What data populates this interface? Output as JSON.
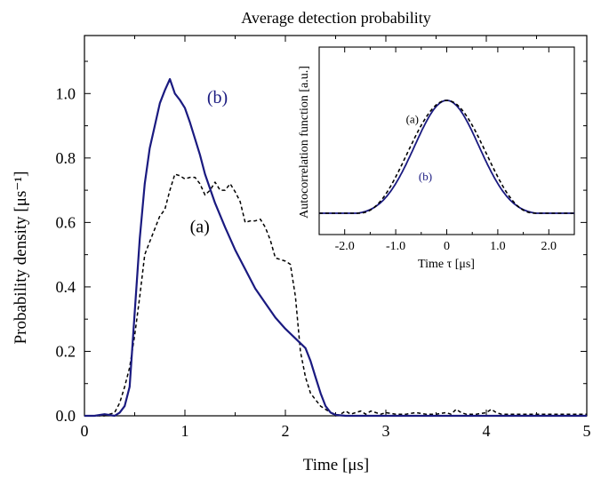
{
  "chart_data": [
    {
      "type": "line",
      "title": "Average detection probability",
      "xlabel": "Time [μs]",
      "ylabel": "Probability density   [μs⁻¹]",
      "xlim": [
        0,
        5
      ],
      "ylim": [
        0,
        1.18
      ],
      "x_ticks": [
        "0",
        "1",
        "2",
        "3",
        "4",
        "5"
      ],
      "y_ticks": [
        "0.0",
        "0.2",
        "0.4",
        "0.6",
        "0.8",
        "1.0"
      ],
      "grid": false,
      "series": [
        {
          "name": "(a)",
          "style": "dashed",
          "color": "#000000",
          "x": [
            0,
            0.2,
            0.25,
            0.3,
            0.35,
            0.4,
            0.45,
            0.5,
            0.55,
            0.6,
            0.65,
            0.7,
            0.75,
            0.8,
            0.85,
            0.9,
            0.95,
            1.0,
            1.05,
            1.1,
            1.15,
            1.2,
            1.25,
            1.3,
            1.35,
            1.4,
            1.45,
            1.5,
            1.55,
            1.6,
            1.65,
            1.7,
            1.75,
            1.8,
            1.85,
            1.9,
            1.95,
            2.0,
            2.05,
            2.1,
            2.15,
            2.2,
            2.25,
            2.3,
            2.35,
            2.4,
            2.45,
            2.5,
            2.55,
            2.6,
            2.65,
            2.7,
            2.75,
            2.8,
            2.85,
            2.9,
            2.95,
            3.0,
            3.1,
            3.2,
            3.3,
            3.4,
            3.5,
            3.6,
            3.65,
            3.7,
            3.75,
            3.8,
            3.9,
            4.0,
            4.05,
            4.1,
            4.15,
            4.2,
            4.3,
            4.5,
            5.0
          ],
          "values": [
            0,
            0,
            0.005,
            0.01,
            0.04,
            0.09,
            0.15,
            0.25,
            0.37,
            0.5,
            0.54,
            0.58,
            0.62,
            0.64,
            0.7,
            0.75,
            0.745,
            0.735,
            0.74,
            0.74,
            0.72,
            0.685,
            0.7,
            0.725,
            0.7,
            0.7,
            0.72,
            0.695,
            0.665,
            0.6,
            0.605,
            0.605,
            0.61,
            0.585,
            0.545,
            0.49,
            0.485,
            0.48,
            0.47,
            0.37,
            0.2,
            0.12,
            0.07,
            0.05,
            0.03,
            0.02,
            0.01,
            0.0,
            0.005,
            0.015,
            0.005,
            0.01,
            0.015,
            0.005,
            0.015,
            0.01,
            0.005,
            0.01,
            0.005,
            0.005,
            0.01,
            0.005,
            0.005,
            0.01,
            0.005,
            0.02,
            0.01,
            0.005,
            0.005,
            0.01,
            0.02,
            0.01,
            0.005,
            0.005,
            0.005,
            0.005,
            0.005
          ]
        },
        {
          "name": "(b)",
          "style": "solid",
          "color": "#1a1a80",
          "x": [
            0,
            0.1,
            0.2,
            0.3,
            0.35,
            0.4,
            0.45,
            0.5,
            0.55,
            0.6,
            0.65,
            0.7,
            0.75,
            0.8,
            0.85,
            0.9,
            0.95,
            1.0,
            1.05,
            1.1,
            1.15,
            1.2,
            1.3,
            1.4,
            1.5,
            1.6,
            1.7,
            1.8,
            1.9,
            2.0,
            2.1,
            2.2,
            2.25,
            2.3,
            2.35,
            2.4,
            2.45,
            2.5,
            2.6,
            3.0,
            4.0,
            5.0
          ],
          "values": [
            0,
            0,
            0.005,
            0.0,
            0.01,
            0.03,
            0.09,
            0.32,
            0.55,
            0.72,
            0.83,
            0.9,
            0.97,
            1.01,
            1.045,
            1.0,
            0.98,
            0.955,
            0.91,
            0.86,
            0.81,
            0.75,
            0.66,
            0.585,
            0.515,
            0.455,
            0.395,
            0.35,
            0.305,
            0.27,
            0.24,
            0.21,
            0.17,
            0.12,
            0.07,
            0.03,
            0.01,
            0.003,
            0,
            0,
            0,
            0
          ]
        }
      ],
      "annotations": [
        {
          "text": "(a)",
          "x": 1.05,
          "y": 0.57
        },
        {
          "text": "(b)",
          "x": 1.22,
          "y": 0.97
        }
      ]
    },
    {
      "type": "line",
      "title": "",
      "xlabel": "Time  τ  [μs]",
      "ylabel": "Autocorrelation function [a.u.]",
      "xlim": [
        -2.5,
        2.5
      ],
      "ylim": [
        0,
        1.12
      ],
      "x_ticks": [
        "-2.0",
        "-1.0",
        "0",
        "1.0",
        "2.0"
      ],
      "series": [
        {
          "name": "(a)",
          "style": "dashed",
          "color": "#000000"
        },
        {
          "name": "(b)",
          "style": "solid",
          "color": "#1a1a80"
        }
      ],
      "annotations": [
        {
          "text": "(a)",
          "x": -0.8,
          "y": 0.8
        },
        {
          "text": "(b)",
          "x": -0.55,
          "y": 0.29
        }
      ]
    }
  ]
}
